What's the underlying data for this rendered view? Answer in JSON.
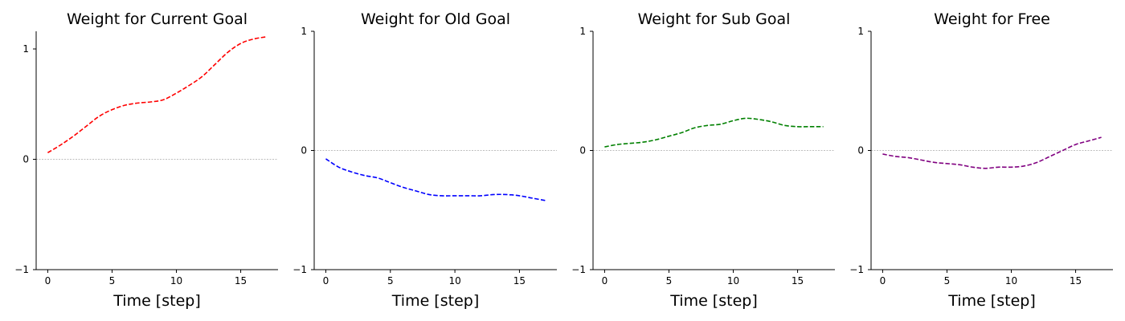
{
  "chart_data": [
    {
      "type": "line",
      "title": "Weight for Current Goal",
      "xlabel": "Time [step]",
      "ylabel": "",
      "xlim": [
        -0.9,
        17.9
      ],
      "ylim": [
        -1,
        1.16
      ],
      "xticks": [
        0,
        5,
        10,
        15
      ],
      "yticks": [
        -1,
        0,
        1
      ],
      "xtick_labels": [
        "0",
        "5",
        "10",
        "15"
      ],
      "ytick_labels": [
        "−1",
        "0",
        "1"
      ],
      "reference_line_y": 0,
      "grid": false,
      "series": [
        {
          "color": "#ff0000",
          "style": "dashed",
          "x": [
            0,
            1,
            2,
            3,
            4,
            5,
            6,
            7,
            8,
            9,
            10,
            11,
            12,
            13,
            14,
            15,
            16,
            17
          ],
          "y": [
            0.06,
            0.13,
            0.21,
            0.3,
            0.39,
            0.45,
            0.49,
            0.51,
            0.52,
            0.54,
            0.6,
            0.67,
            0.75,
            0.86,
            0.97,
            1.05,
            1.09,
            1.11
          ]
        }
      ]
    },
    {
      "type": "line",
      "title": "Weight for Old Goal",
      "xlabel": "Time [step]",
      "ylabel": "",
      "xlim": [
        -0.9,
        17.9
      ],
      "ylim": [
        -1,
        1
      ],
      "xticks": [
        0,
        5,
        10,
        15
      ],
      "yticks": [
        -1,
        0,
        1
      ],
      "xtick_labels": [
        "0",
        "5",
        "10",
        "15"
      ],
      "ytick_labels": [
        "−1",
        "0",
        "1"
      ],
      "reference_line_y": 0,
      "grid": false,
      "series": [
        {
          "color": "#0000ff",
          "style": "dashed",
          "x": [
            0,
            1,
            2,
            3,
            4,
            5,
            6,
            7,
            8,
            9,
            10,
            11,
            12,
            13,
            14,
            15,
            16,
            17
          ],
          "y": [
            -0.07,
            -0.14,
            -0.18,
            -0.21,
            -0.23,
            -0.27,
            -0.31,
            -0.34,
            -0.37,
            -0.38,
            -0.38,
            -0.38,
            -0.38,
            -0.37,
            -0.37,
            -0.38,
            -0.4,
            -0.42
          ]
        }
      ]
    },
    {
      "type": "line",
      "title": "Weight for Sub Goal",
      "xlabel": "Time [step]",
      "ylabel": "",
      "xlim": [
        -0.9,
        17.9
      ],
      "ylim": [
        -1,
        1
      ],
      "xticks": [
        0,
        5,
        10,
        15
      ],
      "yticks": [
        -1,
        0,
        1
      ],
      "xtick_labels": [
        "0",
        "5",
        "10",
        "15"
      ],
      "ytick_labels": [
        "−1",
        "0",
        "1"
      ],
      "reference_line_y": 0,
      "grid": false,
      "series": [
        {
          "color": "#008000",
          "style": "dashed",
          "x": [
            0,
            1,
            2,
            3,
            4,
            5,
            6,
            7,
            8,
            9,
            10,
            11,
            12,
            13,
            14,
            15,
            16,
            17
          ],
          "y": [
            0.03,
            0.05,
            0.06,
            0.07,
            0.09,
            0.12,
            0.15,
            0.19,
            0.21,
            0.22,
            0.25,
            0.27,
            0.26,
            0.24,
            0.21,
            0.2,
            0.2,
            0.2
          ]
        }
      ]
    },
    {
      "type": "line",
      "title": "Weight for Free",
      "xlabel": "Time [step]",
      "ylabel": "",
      "xlim": [
        -0.9,
        17.9
      ],
      "ylim": [
        -1,
        1
      ],
      "xticks": [
        0,
        5,
        10,
        15
      ],
      "yticks": [
        -1,
        0,
        1
      ],
      "xtick_labels": [
        "0",
        "5",
        "10",
        "15"
      ],
      "ytick_labels": [
        "−1",
        "0",
        "1"
      ],
      "reference_line_y": 0,
      "grid": false,
      "series": [
        {
          "color": "#800080",
          "style": "dashed",
          "x": [
            0,
            1,
            2,
            3,
            4,
            5,
            6,
            7,
            8,
            9,
            10,
            11,
            12,
            13,
            14,
            15,
            16,
            17
          ],
          "y": [
            -0.03,
            -0.05,
            -0.06,
            -0.08,
            -0.1,
            -0.11,
            -0.12,
            -0.14,
            -0.15,
            -0.14,
            -0.14,
            -0.13,
            -0.1,
            -0.05,
            0.0,
            0.05,
            0.08,
            0.11
          ]
        }
      ]
    }
  ]
}
